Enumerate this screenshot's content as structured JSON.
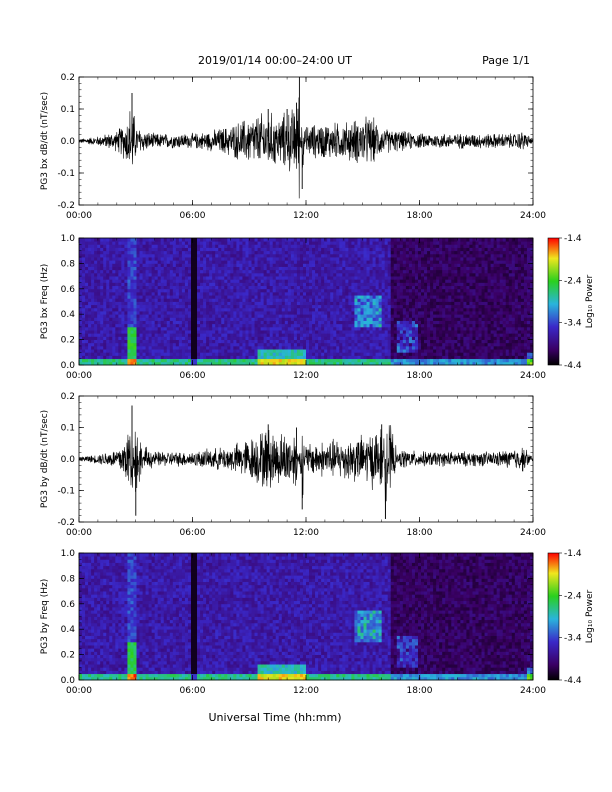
{
  "header": {
    "title": "2019/01/14  00:00–24:00 UT",
    "page": "Page 1/1"
  },
  "footer": {
    "xlabel": "Universal Time (hh:mm)"
  },
  "colors": {
    "trace": "#000000",
    "colormap": [
      "#000000",
      "#3a0064",
      "#3a28c8",
      "#2ab4dc",
      "#2ad01e",
      "#f0e61e",
      "#ff0000"
    ]
  },
  "chart_data": [
    {
      "type": "line",
      "title": "",
      "ylabel": "PG3 bx dB/dt (nT/sec)",
      "xlabel": "",
      "xlim": [
        0,
        24
      ],
      "ylim": [
        -0.2,
        0.2
      ],
      "yticks": [
        "-0.2",
        "-0.1",
        "0.0",
        "0.1",
        "0.2"
      ],
      "xticks": [
        "00:00",
        "06:00",
        "12:00",
        "18:00",
        "24:00"
      ],
      "x": [
        0,
        1,
        2,
        2.5,
        2.8,
        3,
        3.5,
        4,
        5,
        6,
        7,
        8,
        9,
        10,
        10.5,
        11,
        11.5,
        11.65,
        11.8,
        12,
        13,
        14,
        15,
        15.5,
        16,
        17,
        18,
        19,
        20,
        21,
        22,
        23,
        23.5,
        24
      ],
      "series": [
        {
          "values": [
            0,
            0.01,
            0.03,
            0.07,
            0.15,
            0.05,
            0.03,
            0.02,
            0.02,
            0.02,
            0.03,
            0.05,
            0.08,
            0.1,
            0.08,
            0.1,
            0.12,
            0.2,
            -0.15,
            0.05,
            0.06,
            0.06,
            0.08,
            0.08,
            0.04,
            0.03,
            0.02,
            0.02,
            0.02,
            0.02,
            0.02,
            0.02,
            0.03,
            0
          ]
        }
      ],
      "grid": false
    },
    {
      "type": "heatmap",
      "title": "",
      "ylabel": "PG3 bx Freq (Hz)",
      "xlabel": "",
      "xlim": [
        0,
        24
      ],
      "ylim": [
        0,
        1
      ],
      "yticks": [
        "0.0",
        "0.2",
        "0.4",
        "0.6",
        "0.8",
        "1.0"
      ],
      "xticks": [
        "00:00",
        "06:00",
        "12:00",
        "18:00",
        "24:00"
      ],
      "colorbar": {
        "label": "Log₁₀ Power",
        "ticks": [
          "-1.4",
          "-2.4",
          "-3.4",
          "-4.4"
        ],
        "range": [
          -4.4,
          -1.4
        ]
      }
    },
    {
      "type": "line",
      "title": "",
      "ylabel": "PG3 by dB/dt (nT/sec)",
      "xlabel": "",
      "xlim": [
        0,
        24
      ],
      "ylim": [
        -0.2,
        0.2
      ],
      "yticks": [
        "-0.2",
        "-0.1",
        "0.0",
        "0.1",
        "0.2"
      ],
      "xticks": [
        "00:00",
        "06:00",
        "12:00",
        "18:00",
        "24:00"
      ],
      "x": [
        0,
        1,
        2,
        2.5,
        2.8,
        3,
        3.5,
        4,
        5,
        6,
        7,
        8,
        9,
        10,
        10.5,
        11,
        11.5,
        11.8,
        12,
        13,
        14,
        15,
        16,
        16.2,
        17,
        18,
        19,
        20,
        21,
        22,
        23,
        23.5,
        24
      ],
      "series": [
        {
          "values": [
            0,
            0.01,
            0.03,
            0.08,
            0.17,
            -0.18,
            0.04,
            0.02,
            0.02,
            0.02,
            0.03,
            0.04,
            0.07,
            0.11,
            0.09,
            0.09,
            0.1,
            -0.16,
            0.05,
            0.06,
            0.07,
            0.08,
            0.11,
            -0.19,
            0.03,
            0.02,
            0.02,
            0.02,
            0.02,
            0.02,
            0.03,
            0.04,
            0
          ]
        }
      ],
      "grid": false
    },
    {
      "type": "heatmap",
      "title": "",
      "ylabel": "PG3 by Freq (Hz)",
      "xlabel": "",
      "xlim": [
        0,
        24
      ],
      "ylim": [
        0,
        1
      ],
      "yticks": [
        "0.0",
        "0.2",
        "0.4",
        "0.6",
        "0.8",
        "1.0"
      ],
      "xticks": [
        "00:00",
        "06:00",
        "12:00",
        "18:00",
        "24:00"
      ],
      "colorbar": {
        "label": "Log₁₀ Power",
        "ticks": [
          "-1.4",
          "-2.4",
          "-3.4",
          "-4.4"
        ],
        "range": [
          -4.4,
          -1.4
        ]
      }
    }
  ]
}
